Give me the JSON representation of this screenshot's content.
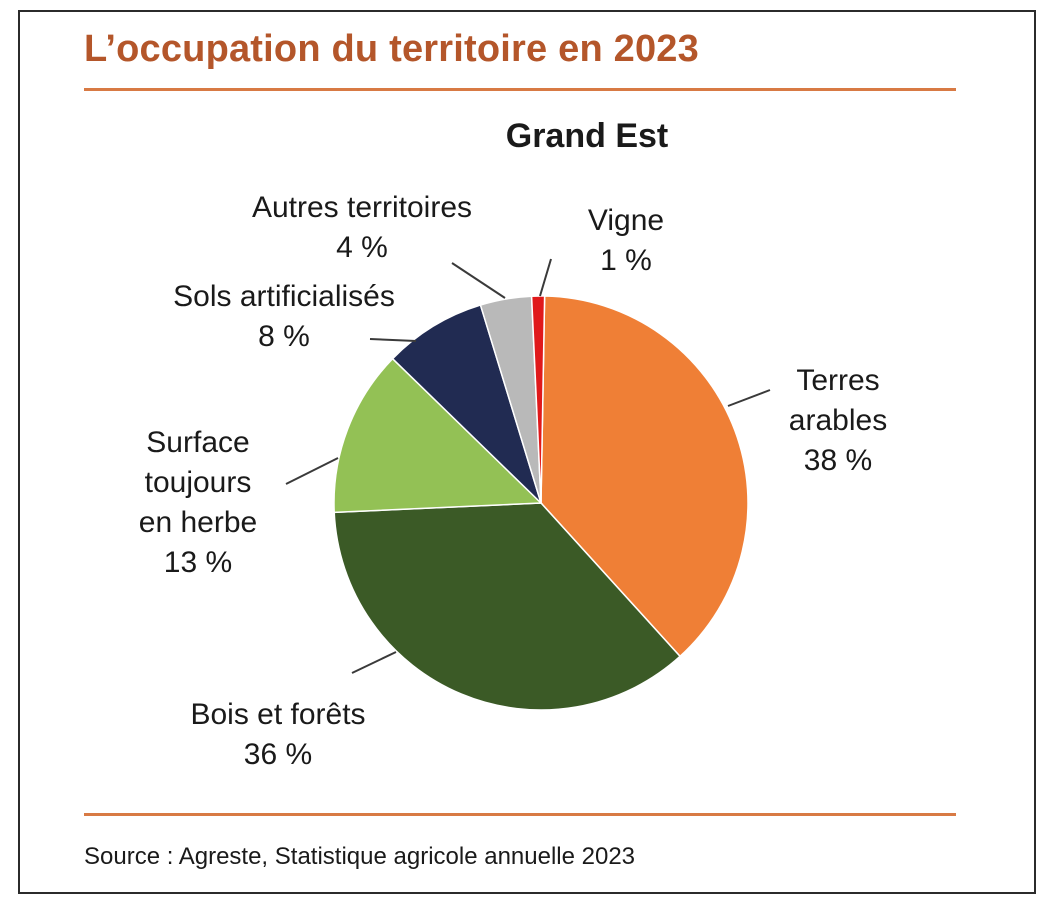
{
  "title": "L’occupation du territoire en 2023",
  "source": "Source : Agreste, Statistique agricole annuelle 2023",
  "chart_data": {
    "type": "pie",
    "subtitle": "Grand Est",
    "slices": [
      {
        "name": "Terres arables",
        "label_lines": [
          "Terres",
          "arables"
        ],
        "value": 38,
        "value_label": "38 %",
        "color": "#ef7f36"
      },
      {
        "name": "Bois et forêts",
        "label_lines": [
          "Bois et forêts"
        ],
        "value": 36,
        "value_label": "36 %",
        "color": "#3b5a26"
      },
      {
        "name": "Surface toujours en herbe",
        "label_lines": [
          "Surface",
          "toujours",
          "en herbe"
        ],
        "value": 13,
        "value_label": "13 %",
        "color": "#93c155"
      },
      {
        "name": "Sols artificialisés",
        "label_lines": [
          "Sols artificialisés"
        ],
        "value": 8,
        "value_label": "8 %",
        "color": "#212b52"
      },
      {
        "name": "Autres territoires",
        "label_lines": [
          "Autres territoires"
        ],
        "value": 4,
        "value_label": "4 %",
        "color": "#b9b9b9"
      },
      {
        "name": "Vigne",
        "label_lines": [
          "Vigne"
        ],
        "value": 1,
        "value_label": "1 %",
        "color": "#e0191b"
      }
    ]
  }
}
